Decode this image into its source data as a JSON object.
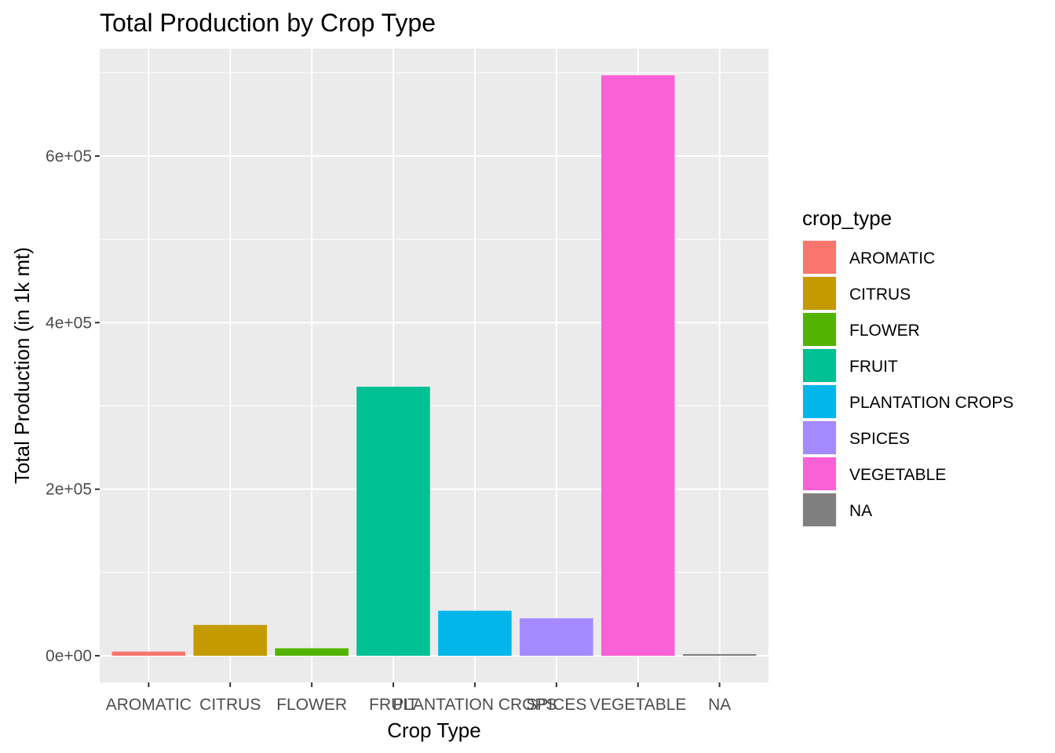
{
  "chart_data": {
    "type": "bar",
    "title": "Total Production by Crop Type",
    "xlabel": "Crop Type",
    "ylabel": "Total Production (in 1k mt)",
    "categories": [
      "AROMATIC",
      "CITRUS",
      "FLOWER",
      "FRUIT",
      "PLANTATION CROPS",
      "SPICES",
      "VEGETABLE",
      "NA"
    ],
    "values": [
      5000,
      37000,
      9000,
      323000,
      54000,
      45000,
      697000,
      2000
    ],
    "colors": [
      "#F8766D",
      "#C49A00",
      "#53B400",
      "#00C094",
      "#00B6EB",
      "#A58AFF",
      "#FB61D7",
      "#7F7F7F"
    ],
    "ylim": [
      -32000,
      729000
    ],
    "yticks": [
      0,
      200000,
      400000,
      600000
    ],
    "ytick_labels": [
      "0e+00",
      "2e+05",
      "4e+05",
      "6e+05"
    ],
    "grid": true,
    "legend": {
      "title": "crop_type",
      "position": "right"
    }
  }
}
